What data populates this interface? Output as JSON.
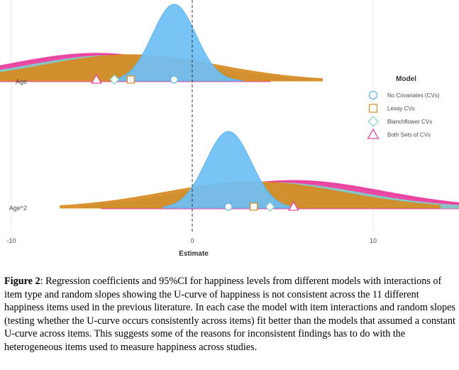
{
  "colors": {
    "no_covariates": "#6cbff5",
    "levay": "#d98a1e",
    "blanchflower": "#7cd3c8",
    "both": "#e8399a",
    "no_covariates_edge": "#5ab4ea",
    "both_edge": "#ea3fa0"
  },
  "chart_data": {
    "type": "density_ridge",
    "xlabel": "Estimate",
    "ylabel": "",
    "xlim": [
      -14,
      16
    ],
    "x_ticks": [
      -10,
      0,
      10
    ],
    "x_tick_labels": [
      "-10",
      "0",
      "10"
    ],
    "reference_line": 0,
    "grid": "vertical major gridlines",
    "legend": {
      "title": "Model",
      "position": "right",
      "entries": [
        {
          "key": "no_covariates",
          "label": "No Covariates (CVs)",
          "shape": "circle"
        },
        {
          "key": "levay",
          "label": "Levay CVs",
          "shape": "square"
        },
        {
          "key": "blanchflower",
          "label": "Blanchflower CVs",
          "shape": "diamond"
        },
        {
          "key": "both",
          "label": "Both Sets of CVs",
          "shape": "triangle"
        }
      ]
    },
    "rows": [
      {
        "label": "Age",
        "series": [
          {
            "key": "both",
            "estimate": -5.3,
            "ci": [
              -15.3,
              4.3
            ],
            "sd": 4.8
          },
          {
            "key": "blanchflower",
            "estimate": -4.3,
            "ci": [
              -14.5,
              6.5
            ],
            "sd": 4.8
          },
          {
            "key": "levay",
            "estimate": -3.4,
            "ci": [
              -13.2,
              7.2
            ],
            "sd": 4.8
          },
          {
            "key": "no_covariates",
            "estimate": -1.0,
            "ci": [
              -4.3,
              2.8
            ],
            "sd": 1.2
          }
        ]
      },
      {
        "label": "Age^2",
        "series": [
          {
            "key": "both",
            "estimate": 5.6,
            "ci": [
              -5.0,
              15.6
            ],
            "sd": 4.9
          },
          {
            "key": "blanchflower",
            "estimate": 4.3,
            "ci": [
              -6.0,
              14.8
            ],
            "sd": 4.9
          },
          {
            "key": "levay",
            "estimate": 3.4,
            "ci": [
              -7.3,
              13.7
            ],
            "sd": 4.9
          },
          {
            "key": "no_covariates",
            "estimate": 2.0,
            "ci": [
              -1.6,
              5.5
            ],
            "sd": 1.25
          }
        ]
      }
    ]
  },
  "caption": {
    "label": "Figure 2",
    "text": ": Regression coefficients and 95%CI for happiness levels from different models with interactions of item type and random slopes showing the U-curve of happiness is not consistent across the 11 different happiness items used in the previous literature. In each case the model with item interactions and random slopes (testing whether the U-curve occurs consistently across items) fit better than the models that assumed a constant U-curve across items. This suggests some of the reasons for inconsistent findings has to do with the heterogeneous items used to measure happiness across studies."
  }
}
